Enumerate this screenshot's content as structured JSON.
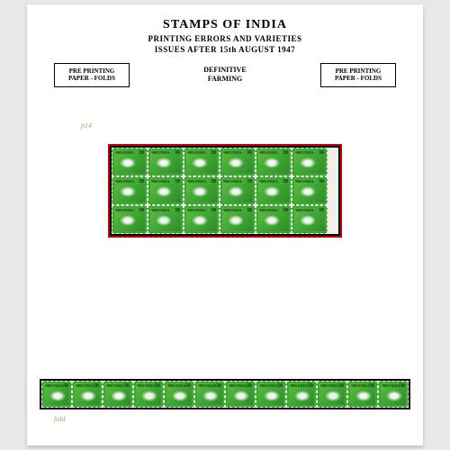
{
  "header": {
    "main_title": "STAMPS OF INDIA",
    "subtitle": "PRINTING ERRORS AND VARIETIES",
    "date_line": "ISSUES AFTER 15th AUGUST 1947"
  },
  "labels": {
    "left_box_line1": "PRE PRINTING",
    "left_box_line2": "PAPER - FOLDS",
    "right_box_line1": "PRE PRINTING",
    "right_box_line2": "PAPER - FOLDS",
    "center_line1": "DEFINITIVE",
    "center_line2": "FARMING"
  },
  "stamp": {
    "country": "भारत INDIA",
    "denomination": "30",
    "color": "#3fa835",
    "design": "farming/harvesting figure"
  },
  "block": {
    "rows": 3,
    "cols": 6,
    "mount_border_color": "#c40000",
    "has_right_selvage": true
  },
  "strip": {
    "count": 12,
    "mount_color": "#000000"
  },
  "notes": {
    "n1": "p14",
    "n2": "fold"
  },
  "page_bg": "#ffffff",
  "outer_bg": "#e8e8e8"
}
